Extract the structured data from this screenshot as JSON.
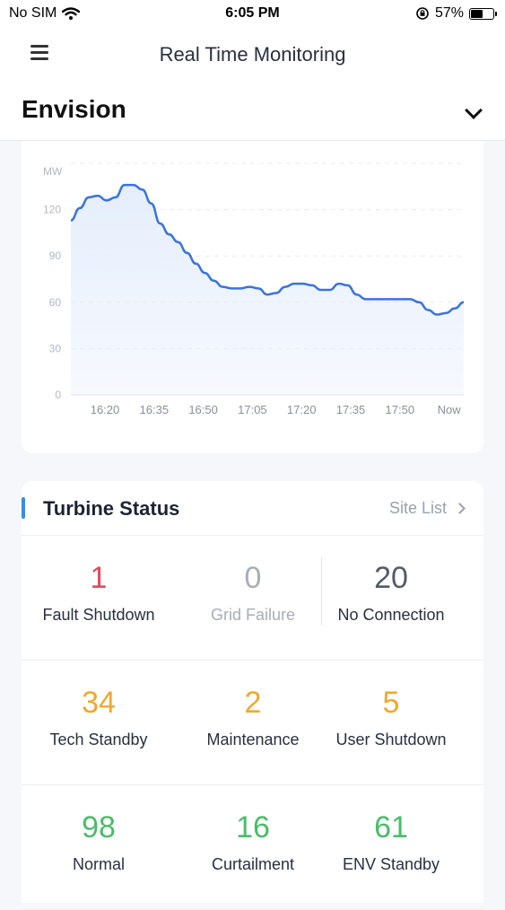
{
  "status_bar": {
    "carrier": "No SIM",
    "time": "6:05 PM",
    "battery_pct": "57%",
    "battery_level": 0.57
  },
  "nav": {
    "title": "Real Time Monitoring",
    "menu_icon": "hamburger-icon"
  },
  "site": {
    "name": "Envision",
    "dropdown_icon": "chevron-down-icon"
  },
  "chart_data": {
    "type": "area",
    "ylabel": "MW",
    "ylim": [
      0,
      150
    ],
    "yticks": [
      0,
      30,
      60,
      90,
      120
    ],
    "xticks": [
      "16:20",
      "16:35",
      "16:50",
      "17:05",
      "17:20",
      "17:35",
      "17:50",
      "Now"
    ],
    "line_color": "#3b73dc",
    "fill_color": "#e6eefc",
    "series": [
      {
        "values": [
          113,
          121,
          128,
          129,
          126,
          128,
          136,
          136,
          133,
          124,
          111,
          104,
          99,
          92,
          85,
          79,
          74,
          70,
          69,
          69,
          70,
          69,
          65,
          66,
          70,
          72,
          72,
          71,
          68,
          68,
          72,
          71,
          65,
          62,
          62,
          62,
          62,
          62,
          62,
          60,
          55,
          52,
          53,
          56,
          60
        ]
      }
    ]
  },
  "turbine_status": {
    "title": "Turbine Status",
    "site_list_label": "Site List",
    "items": [
      {
        "value": "1",
        "label": "Fault Shutdown",
        "color": "#e04a5c",
        "label_color": "#2a2f40"
      },
      {
        "value": "0",
        "label": "Grid Failure",
        "color": "#a9adb6",
        "label_color": "#a9adb6"
      },
      {
        "value": "20",
        "label": "No Connection",
        "color": "#555a66",
        "label_color": "#2a2f40"
      },
      {
        "value": "34",
        "label": "Tech Standby",
        "color": "#f0a830",
        "label_color": "#2a2f40"
      },
      {
        "value": "2",
        "label": "Maintenance",
        "color": "#f0a830",
        "label_color": "#2a2f40"
      },
      {
        "value": "5",
        "label": "User Shutdown",
        "color": "#f0a830",
        "label_color": "#2a2f40"
      },
      {
        "value": "98",
        "label": "Normal",
        "color": "#4cbb6c",
        "label_color": "#2a2f40"
      },
      {
        "value": "16",
        "label": "Curtailment",
        "color": "#4cbb6c",
        "label_color": "#2a2f40"
      },
      {
        "value": "61",
        "label": "ENV Standby",
        "color": "#4cbb6c",
        "label_color": "#2a2f40"
      }
    ]
  }
}
